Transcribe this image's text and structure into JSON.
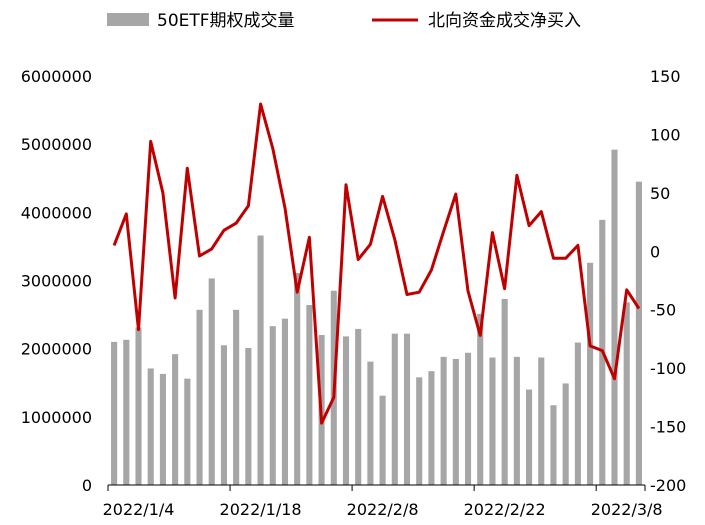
{
  "colors": {
    "bar": "#a6a6a6",
    "line": "#c00000",
    "axis": "#000000",
    "text": "#000000"
  },
  "chart_data": {
    "type": "bar",
    "grid": false,
    "legend_position": "top",
    "series": [
      {
        "name": "50ETF期权成交量",
        "type": "bar",
        "axis": "left",
        "values": [
          2100000,
          2130000,
          2310000,
          1710000,
          1630000,
          1920000,
          1560000,
          2570000,
          3030000,
          2050000,
          2570000,
          2010000,
          3660000,
          2330000,
          2440000,
          3110000,
          2640000,
          2200000,
          2850000,
          2180000,
          2290000,
          1810000,
          1310000,
          2220000,
          2220000,
          1580000,
          1670000,
          1880000,
          1850000,
          1940000,
          2510000,
          1870000,
          2730000,
          1880000,
          1400000,
          1870000,
          1170000,
          1490000,
          2090000,
          3260000,
          3890000,
          4920000,
          2680000,
          4450000
        ]
      },
      {
        "name": "北向资金成交净买入",
        "type": "line",
        "axis": "right",
        "values": [
          5,
          32,
          -67,
          94,
          50,
          -40,
          71,
          -4,
          2,
          18,
          24,
          39,
          126,
          88,
          37,
          -35,
          12,
          -147,
          -125,
          57,
          -7,
          6,
          47,
          10,
          -37,
          -35,
          -16,
          17,
          49,
          -34,
          -72,
          16,
          -32,
          65,
          22,
          34,
          -6,
          -6,
          5,
          -81,
          -85,
          -109,
          -33,
          -49
        ]
      }
    ],
    "x_tick_labels": [
      "2022/1/4",
      "2022/1/18",
      "2022/2/8",
      "2022/2/22",
      "2022/3/8"
    ],
    "x_tick_positions": [
      2,
      12,
      22,
      32,
      42
    ],
    "y_left": {
      "min": 0,
      "max": 6000000,
      "ticks": [
        "0",
        "1000000",
        "2000000",
        "3000000",
        "4000000",
        "5000000",
        "6000000"
      ]
    },
    "y_right": {
      "min": -200,
      "max": 150,
      "ticks": [
        "-200",
        "-150",
        "-100",
        "-50",
        "0",
        "50",
        "100",
        "150"
      ]
    }
  }
}
